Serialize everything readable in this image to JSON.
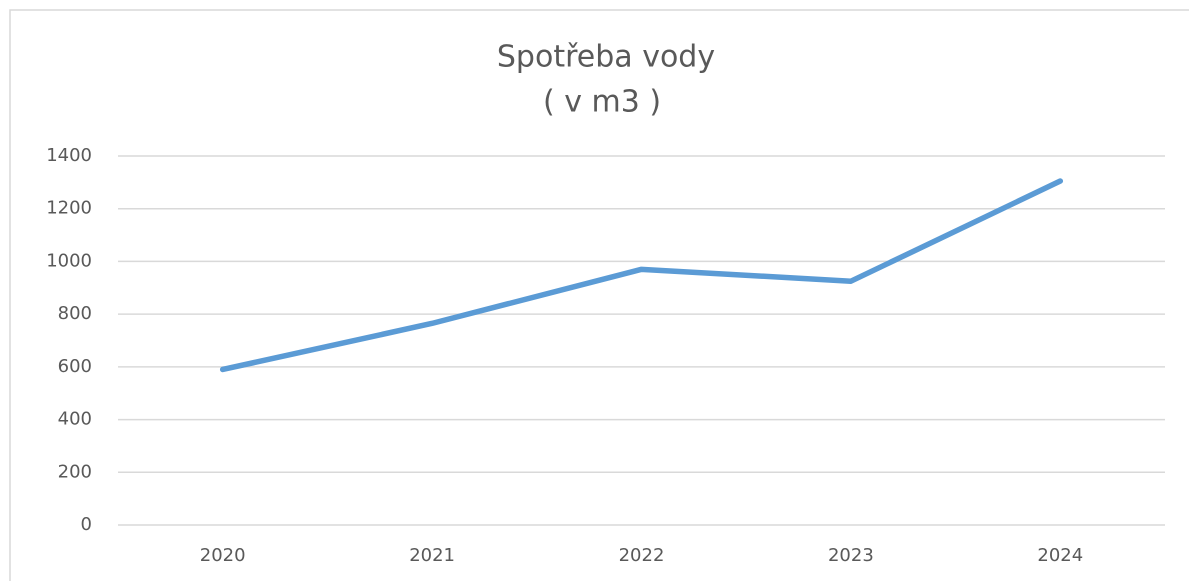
{
  "chart_data": {
    "type": "line",
    "title": "Spotřeba vody",
    "subtitle": "( v m3 )",
    "categories": [
      "2020",
      "2021",
      "2022",
      "2023",
      "2024"
    ],
    "series": [
      {
        "name": "Spotřeba vody",
        "color": "#5b9bd5",
        "values": [
          590,
          765,
          970,
          925,
          1305
        ]
      }
    ],
    "ylim": [
      0,
      1400
    ],
    "yticks": [
      0,
      200,
      400,
      600,
      800,
      1000,
      1200,
      1400
    ],
    "grid": true
  }
}
